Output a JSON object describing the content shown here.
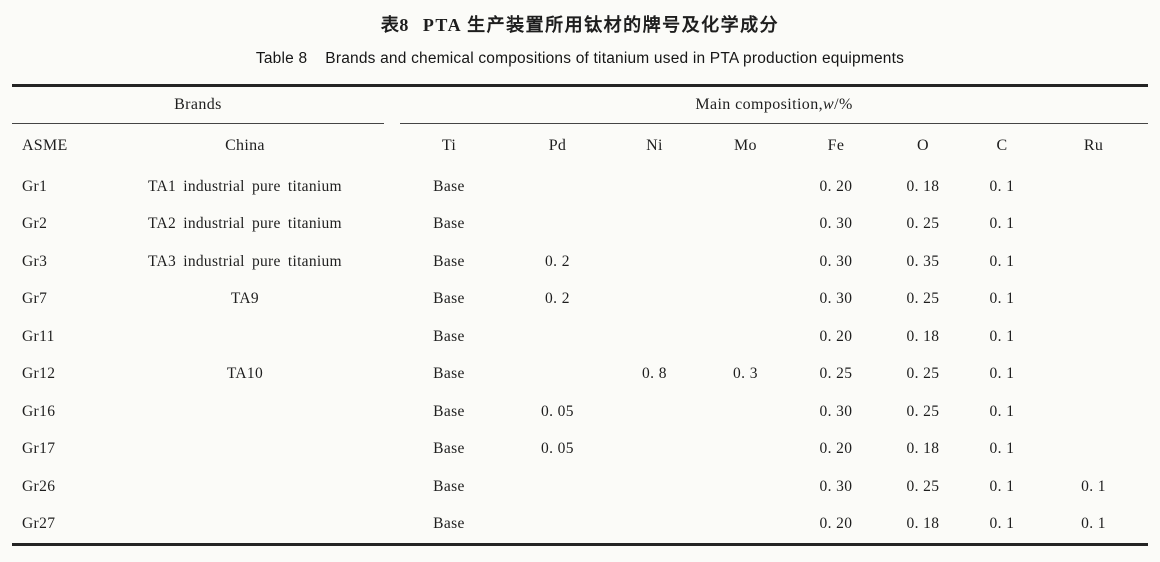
{
  "titles": {
    "zh": {
      "label": "表8",
      "text": "PTA 生产装置所用钛材的牌号及化学成分"
    },
    "en": {
      "label": "Table 8",
      "text": "Brands and chemical compositions of titanium used in PTA production equipments"
    }
  },
  "table": {
    "spanners": {
      "brands": "Brands",
      "composition_prefix": "Main composition, ",
      "composition_var": "w",
      "composition_suffix": "/%"
    },
    "columns": [
      "ASME",
      "China",
      "Ti",
      "Pd",
      "Ni",
      "Mo",
      "Fe",
      "O",
      "C",
      "Ru"
    ],
    "rows": [
      [
        "Gr1",
        "TA1 industrial pure titanium",
        "Base",
        "",
        "",
        "",
        "0. 20",
        "0. 18",
        "0. 1",
        ""
      ],
      [
        "Gr2",
        "TA2 industrial pure titanium",
        "Base",
        "",
        "",
        "",
        "0. 30",
        "0. 25",
        "0. 1",
        ""
      ],
      [
        "Gr3",
        "TA3 industrial pure titanium",
        "Base",
        "0. 2",
        "",
        "",
        "0. 30",
        "0. 35",
        "0. 1",
        ""
      ],
      [
        "Gr7",
        "TA9",
        "Base",
        "0. 2",
        "",
        "",
        "0. 30",
        "0. 25",
        "0. 1",
        ""
      ],
      [
        "Gr11",
        "",
        "Base",
        "",
        "",
        "",
        "0. 20",
        "0. 18",
        "0. 1",
        ""
      ],
      [
        "Gr12",
        "TA10",
        "Base",
        "",
        "0. 8",
        "0. 3",
        "0. 25",
        "0. 25",
        "0. 1",
        ""
      ],
      [
        "Gr16",
        "",
        "Base",
        "0. 05",
        "",
        "",
        "0. 30",
        "0. 25",
        "0. 1",
        ""
      ],
      [
        "Gr17",
        "",
        "Base",
        "0. 05",
        "",
        "",
        "0. 20",
        "0. 18",
        "0. 1",
        ""
      ],
      [
        "Gr26",
        "",
        "Base",
        "",
        "",
        "",
        "0. 30",
        "0. 25",
        "0. 1",
        "0. 1"
      ],
      [
        "Gr27",
        "",
        "Base",
        "",
        "",
        "",
        "0. 20",
        "0. 18",
        "0. 1",
        "0. 1"
      ]
    ]
  }
}
